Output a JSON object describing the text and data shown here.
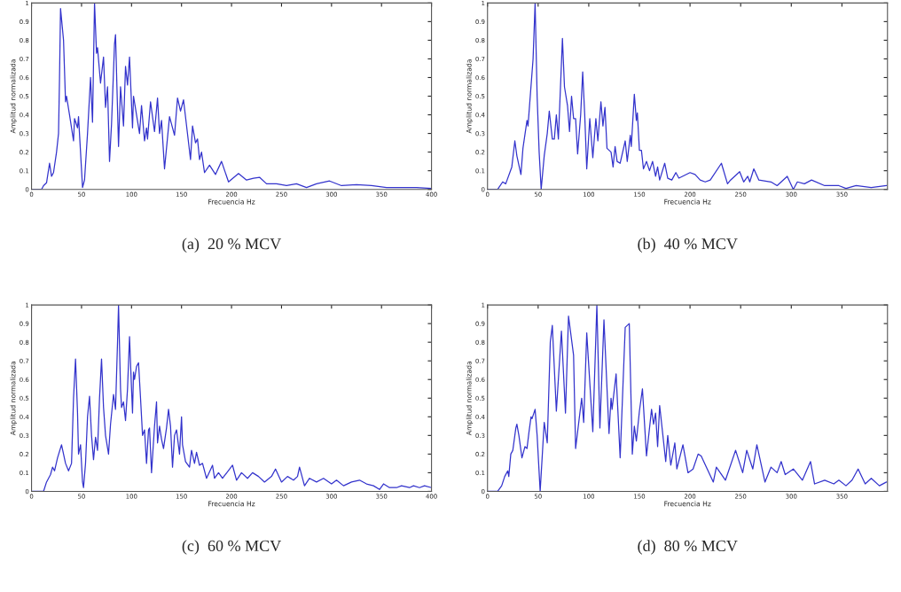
{
  "chart_data": [
    {
      "type": "line",
      "title": "(a)  20 % MCV",
      "xlabel": "Frecuencia Hz",
      "ylabel": "Amplitud normalizada",
      "xlim": [
        0,
        400
      ],
      "ylim": [
        0,
        1
      ],
      "xticks": [
        0,
        50,
        100,
        150,
        200,
        250,
        300,
        350,
        400
      ],
      "yticks": [
        0,
        0.1,
        0.2,
        0.3,
        0.4,
        0.5,
        0.6,
        0.7,
        0.8,
        0.9,
        1
      ],
      "grid": false,
      "legend": false,
      "series": [
        {
          "color": "#3333cc",
          "x": [
            0,
            10,
            12,
            15,
            18,
            20,
            22,
            25,
            27,
            28,
            29,
            32,
            34,
            35,
            38,
            42,
            43,
            46,
            47,
            49,
            51,
            53,
            56,
            59,
            61,
            63,
            65,
            66,
            69,
            72,
            74,
            76,
            78,
            80,
            83,
            84,
            87,
            89,
            92,
            94,
            96,
            98,
            101,
            102,
            108,
            110,
            113,
            115,
            116,
            119,
            123,
            126,
            128,
            130,
            133,
            138,
            143,
            146,
            149,
            152,
            159,
            161,
            164,
            166,
            168,
            170,
            173,
            178,
            184,
            190,
            197,
            207,
            215,
            222,
            228,
            235,
            245,
            255,
            265,
            275,
            285,
            298,
            310,
            325,
            340,
            355,
            370,
            385,
            400
          ],
          "values": [
            0,
            0,
            0.02,
            0.035,
            0.14,
            0.07,
            0.09,
            0.2,
            0.3,
            0.6,
            0.97,
            0.8,
            0.47,
            0.5,
            0.4,
            0.26,
            0.38,
            0.33,
            0.39,
            0.2,
            0.01,
            0.05,
            0.3,
            0.6,
            0.36,
            1.0,
            0.73,
            0.76,
            0.57,
            0.71,
            0.44,
            0.55,
            0.15,
            0.35,
            0.78,
            0.83,
            0.23,
            0.55,
            0.34,
            0.66,
            0.56,
            0.71,
            0.33,
            0.5,
            0.3,
            0.45,
            0.26,
            0.33,
            0.27,
            0.47,
            0.31,
            0.49,
            0.3,
            0.37,
            0.11,
            0.39,
            0.29,
            0.49,
            0.42,
            0.48,
            0.16,
            0.34,
            0.25,
            0.27,
            0.16,
            0.2,
            0.09,
            0.13,
            0.08,
            0.15,
            0.04,
            0.085,
            0.05,
            0.06,
            0.065,
            0.03,
            0.03,
            0.02,
            0.03,
            0.01,
            0.03,
            0.045,
            0.02,
            0.025,
            0.02,
            0.01,
            0.01,
            0.01,
            0.005
          ]
        }
      ]
    },
    {
      "type": "line",
      "title": "(b)  40 % MCV",
      "xlabel": "Frecuencia Hz",
      "ylabel": "Amplitud normalizada",
      "xlim": [
        0,
        395
      ],
      "ylim": [
        0,
        1
      ],
      "xticks": [
        0,
        50,
        100,
        150,
        200,
        250,
        300,
        350
      ],
      "yticks": [
        0,
        0.1,
        0.2,
        0.3,
        0.4,
        0.5,
        0.6,
        0.7,
        0.8,
        0.9,
        1
      ],
      "grid": false,
      "legend": false,
      "series": [
        {
          "color": "#3333cc",
          "x": [
            0,
            10,
            15,
            18,
            24,
            27,
            29,
            33,
            35,
            39,
            40,
            45,
            47,
            49,
            51,
            53,
            56,
            59,
            61,
            64,
            66,
            68,
            70,
            74,
            76,
            79,
            81,
            83,
            85,
            87,
            89,
            92,
            94,
            96,
            98,
            101,
            104,
            107,
            109,
            112,
            114,
            116,
            118,
            122,
            124,
            126,
            128,
            131,
            136,
            138,
            141,
            142,
            145,
            147,
            148,
            150,
            152,
            154,
            157,
            160,
            163,
            166,
            168,
            170,
            175,
            178,
            182,
            186,
            189,
            200,
            205,
            210,
            215,
            220,
            231,
            237,
            240,
            249,
            253,
            257,
            259,
            263,
            268,
            280,
            286,
            296,
            302,
            306,
            313,
            320,
            333,
            347,
            354,
            364,
            379,
            394
          ],
          "values": [
            0,
            0,
            0.04,
            0.03,
            0.12,
            0.26,
            0.18,
            0.08,
            0.22,
            0.37,
            0.34,
            0.7,
            1.0,
            0.5,
            0.2,
            0.0,
            0.18,
            0.3,
            0.42,
            0.27,
            0.27,
            0.4,
            0.27,
            0.81,
            0.55,
            0.45,
            0.31,
            0.5,
            0.38,
            0.38,
            0.19,
            0.4,
            0.63,
            0.4,
            0.11,
            0.38,
            0.17,
            0.38,
            0.26,
            0.47,
            0.34,
            0.44,
            0.22,
            0.2,
            0.12,
            0.23,
            0.15,
            0.14,
            0.26,
            0.15,
            0.29,
            0.23,
            0.51,
            0.37,
            0.41,
            0.21,
            0.21,
            0.11,
            0.15,
            0.1,
            0.15,
            0.07,
            0.12,
            0.05,
            0.14,
            0.06,
            0.05,
            0.09,
            0.06,
            0.09,
            0.08,
            0.05,
            0.04,
            0.05,
            0.14,
            0.03,
            0.05,
            0.095,
            0.04,
            0.07,
            0.04,
            0.11,
            0.05,
            0.04,
            0.02,
            0.07,
            0.0,
            0.04,
            0.03,
            0.05,
            0.02,
            0.02,
            0.005,
            0.02,
            0.01,
            0.02
          ]
        }
      ]
    },
    {
      "type": "line",
      "title": "(c)  60 % MCV",
      "xlabel": "Frecuencia Hz",
      "ylabel": "Amplitud normalizada",
      "xlim": [
        0,
        400
      ],
      "ylim": [
        0,
        1
      ],
      "xticks": [
        0,
        50,
        100,
        150,
        200,
        250,
        300,
        350,
        400
      ],
      "yticks": [
        0,
        0.1,
        0.2,
        0.3,
        0.4,
        0.5,
        0.6,
        0.7,
        0.8,
        0.9,
        1
      ],
      "grid": false,
      "legend": false,
      "series": [
        {
          "color": "#3333cc",
          "x": [
            0,
            12,
            15,
            19,
            21,
            23,
            26,
            30,
            34,
            37,
            40,
            42,
            44,
            46,
            47,
            49,
            51,
            52,
            54,
            56,
            58,
            60,
            62,
            64,
            66,
            68,
            70,
            72,
            74,
            77,
            79,
            82,
            84,
            86,
            87,
            89,
            90,
            92,
            94,
            96,
            98,
            100,
            101,
            102,
            103,
            105,
            107,
            109,
            111,
            113,
            115,
            117,
            118,
            120,
            123,
            125,
            126,
            128,
            130,
            132,
            135,
            137,
            139,
            141,
            143,
            145,
            148,
            150,
            151,
            154,
            158,
            160,
            163,
            165,
            168,
            171,
            175,
            181,
            183,
            187,
            191,
            201,
            205,
            210,
            216,
            221,
            227,
            233,
            240,
            244,
            250,
            256,
            262,
            266,
            268,
            273,
            278,
            285,
            292,
            300,
            305,
            312,
            320,
            328,
            335,
            342,
            348,
            352,
            358,
            365,
            370,
            378,
            382,
            388,
            393,
            400
          ],
          "values": [
            0,
            0,
            0.05,
            0.09,
            0.13,
            0.11,
            0.18,
            0.25,
            0.15,
            0.11,
            0.15,
            0.5,
            0.71,
            0.42,
            0.2,
            0.25,
            0.05,
            0.02,
            0.15,
            0.4,
            0.51,
            0.3,
            0.17,
            0.29,
            0.22,
            0.5,
            0.71,
            0.45,
            0.3,
            0.2,
            0.36,
            0.52,
            0.44,
            0.8,
            1.0,
            0.55,
            0.45,
            0.48,
            0.38,
            0.55,
            0.83,
            0.55,
            0.42,
            0.64,
            0.6,
            0.67,
            0.69,
            0.5,
            0.3,
            0.33,
            0.15,
            0.33,
            0.34,
            0.1,
            0.35,
            0.48,
            0.26,
            0.35,
            0.28,
            0.23,
            0.34,
            0.44,
            0.35,
            0.13,
            0.3,
            0.33,
            0.2,
            0.4,
            0.25,
            0.16,
            0.13,
            0.22,
            0.15,
            0.21,
            0.14,
            0.15,
            0.07,
            0.14,
            0.07,
            0.1,
            0.07,
            0.14,
            0.06,
            0.1,
            0.07,
            0.1,
            0.08,
            0.05,
            0.08,
            0.12,
            0.05,
            0.08,
            0.06,
            0.08,
            0.13,
            0.03,
            0.07,
            0.05,
            0.07,
            0.04,
            0.06,
            0.03,
            0.05,
            0.06,
            0.04,
            0.03,
            0.01,
            0.04,
            0.02,
            0.02,
            0.03,
            0.02,
            0.03,
            0.02,
            0.03,
            0.02
          ]
        }
      ]
    },
    {
      "type": "line",
      "title": "(d)  80 % MCV",
      "xlabel": "Frecuencia Hz",
      "ylabel": "Amplitud normalizada",
      "xlim": [
        0,
        395
      ],
      "ylim": [
        0,
        1
      ],
      "xticks": [
        0,
        50,
        100,
        150,
        200,
        250,
        300,
        350
      ],
      "yticks": [
        0,
        0.1,
        0.2,
        0.3,
        0.4,
        0.5,
        0.6,
        0.7,
        0.8,
        0.9,
        1
      ],
      "grid": false,
      "legend": false,
      "series": [
        {
          "color": "#3333cc",
          "x": [
            0,
            10,
            14,
            17,
            20,
            21,
            23,
            25,
            28,
            29,
            31,
            34,
            37,
            39,
            41,
            43,
            44,
            47,
            49,
            52,
            56,
            59,
            62,
            64,
            68,
            73,
            77,
            80,
            85,
            87,
            93,
            95,
            98,
            104,
            108,
            111,
            115,
            120,
            122,
            123,
            127,
            131,
            136,
            140,
            143,
            145,
            147,
            150,
            153,
            157,
            162,
            164,
            166,
            168,
            170,
            176,
            178,
            181,
            185,
            187,
            193,
            198,
            203,
            208,
            211,
            223,
            226,
            235,
            245,
            252,
            256,
            262,
            266,
            274,
            280,
            286,
            290,
            294,
            302,
            311,
            319,
            323,
            333,
            342,
            347,
            354,
            360,
            366,
            373,
            379,
            387,
            394
          ],
          "values": [
            0,
            0,
            0.03,
            0.08,
            0.11,
            0.08,
            0.2,
            0.22,
            0.34,
            0.36,
            0.3,
            0.18,
            0.24,
            0.23,
            0.32,
            0.4,
            0.39,
            0.44,
            0.3,
            0.0,
            0.37,
            0.26,
            0.8,
            0.89,
            0.43,
            0.86,
            0.42,
            0.94,
            0.73,
            0.23,
            0.5,
            0.37,
            0.85,
            0.32,
            1.0,
            0.34,
            0.92,
            0.31,
            0.5,
            0.44,
            0.63,
            0.18,
            0.88,
            0.9,
            0.2,
            0.35,
            0.27,
            0.43,
            0.55,
            0.19,
            0.44,
            0.36,
            0.42,
            0.24,
            0.46,
            0.16,
            0.3,
            0.14,
            0.26,
            0.12,
            0.25,
            0.1,
            0.12,
            0.2,
            0.19,
            0.05,
            0.13,
            0.06,
            0.22,
            0.1,
            0.22,
            0.12,
            0.25,
            0.05,
            0.13,
            0.1,
            0.16,
            0.09,
            0.12,
            0.06,
            0.16,
            0.04,
            0.06,
            0.04,
            0.06,
            0.03,
            0.06,
            0.12,
            0.04,
            0.07,
            0.03,
            0.05
          ]
        }
      ]
    }
  ]
}
